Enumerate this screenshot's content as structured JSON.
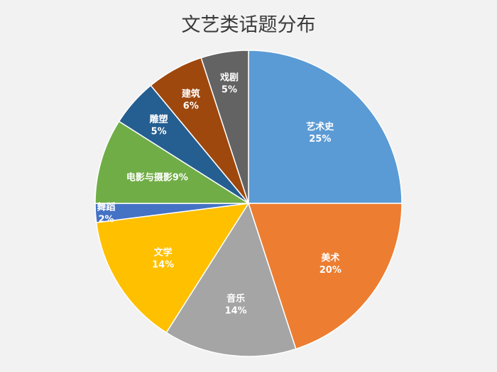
{
  "chart_data": {
    "type": "pie",
    "title": "文艺类话题分布",
    "slices": [
      {
        "label": "艺术史",
        "value": 25,
        "value_text": "25%",
        "color": "#5b9bd5"
      },
      {
        "label": "美术",
        "value": 20,
        "value_text": "20%",
        "color": "#ed7d31"
      },
      {
        "label": "音乐",
        "value": 14,
        "value_text": "14%",
        "color": "#a5a5a5"
      },
      {
        "label": "文学",
        "value": 14,
        "value_text": "14%",
        "color": "#ffc000"
      },
      {
        "label": "舞蹈",
        "value": 2,
        "value_text": "2%",
        "color": "#4472c4"
      },
      {
        "label": "电影与摄影",
        "value": 9,
        "value_text": "9%",
        "color": "#70ad47"
      },
      {
        "label": "雕塑",
        "value": 5,
        "value_text": "5%",
        "color": "#255e91"
      },
      {
        "label": "建筑",
        "value": 6,
        "value_text": "6%",
        "color": "#9e480e"
      },
      {
        "label": "戏剧",
        "value": 5,
        "value_text": "5%",
        "color": "#636363"
      }
    ]
  }
}
